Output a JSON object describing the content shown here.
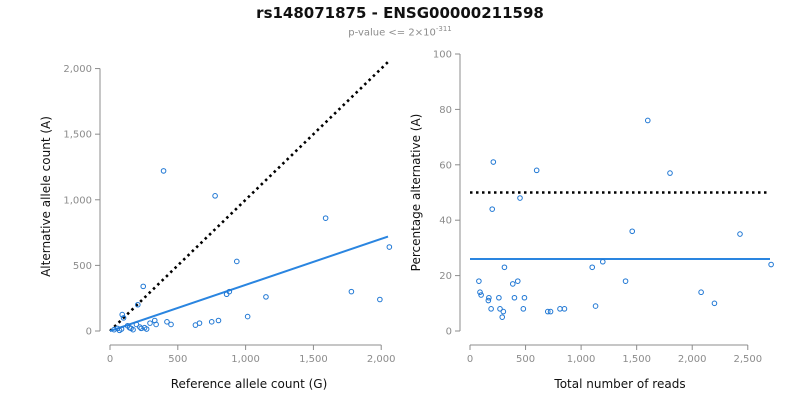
{
  "header": {
    "title": "rs148071875 - ENSG00000211598",
    "subtitle_prefix": "p-value <= 2×10",
    "subtitle_exponent": "-311"
  },
  "colors": {
    "point": "#1f77d4",
    "fit_line": "#2a85e0",
    "reference_line": "#000000",
    "axis": "#8c8c8c"
  },
  "chart_data": [
    {
      "type": "scatter",
      "xlabel": "Reference allele count (G)",
      "ylabel": "Alternative allele count (A)",
      "xlim": [
        0,
        2050
      ],
      "ylim": [
        0,
        2050
      ],
      "xticks": [
        0,
        500,
        1000,
        1500,
        2000
      ],
      "xtick_labels": [
        "0",
        "500",
        "1,000",
        "1,500",
        "2,000"
      ],
      "yticks": [
        0,
        500,
        1000,
        1500,
        2000
      ],
      "ytick_labels": [
        "0",
        "500",
        "1,000",
        "1,500",
        "2,000"
      ],
      "points": [
        [
          30,
          10
        ],
        [
          55,
          20
        ],
        [
          70,
          5
        ],
        [
          85,
          15
        ],
        [
          90,
          125
        ],
        [
          100,
          100
        ],
        [
          130,
          40
        ],
        [
          145,
          25
        ],
        [
          155,
          20
        ],
        [
          170,
          10
        ],
        [
          195,
          50
        ],
        [
          205,
          200
        ],
        [
          220,
          30
        ],
        [
          230,
          20
        ],
        [
          245,
          340
        ],
        [
          255,
          25
        ],
        [
          270,
          15
        ],
        [
          295,
          60
        ],
        [
          330,
          80
        ],
        [
          340,
          50
        ],
        [
          395,
          1220
        ],
        [
          420,
          70
        ],
        [
          450,
          50
        ],
        [
          630,
          45
        ],
        [
          660,
          60
        ],
        [
          750,
          70
        ],
        [
          775,
          1030
        ],
        [
          800,
          80
        ],
        [
          860,
          280
        ],
        [
          880,
          300
        ],
        [
          935,
          530
        ],
        [
          1015,
          110
        ],
        [
          1150,
          260
        ],
        [
          1590,
          860
        ],
        [
          1780,
          300
        ],
        [
          1990,
          240
        ],
        [
          2060,
          640
        ]
      ],
      "fit_line": [
        [
          0,
          0
        ],
        [
          2050,
          720
        ]
      ],
      "reference_line": [
        [
          0,
          0
        ],
        [
          2050,
          2050
        ]
      ]
    },
    {
      "type": "scatter",
      "xlabel": "Total number of reads",
      "ylabel": "Percentage alternative (A)",
      "xlim": [
        0,
        2700
      ],
      "ylim": [
        0,
        100
      ],
      "xticks": [
        0,
        500,
        1000,
        1500,
        2000,
        2500
      ],
      "xtick_labels": [
        "0",
        "500",
        "1,000",
        "1,500",
        "2,000",
        "2,500"
      ],
      "yticks": [
        0,
        20,
        40,
        60,
        80,
        100
      ],
      "ytick_labels": [
        "0",
        "20",
        "40",
        "60",
        "80",
        "100"
      ],
      "points": [
        [
          80,
          18
        ],
        [
          90,
          14
        ],
        [
          100,
          13
        ],
        [
          165,
          11
        ],
        [
          170,
          12
        ],
        [
          190,
          8
        ],
        [
          200,
          44
        ],
        [
          210,
          61
        ],
        [
          260,
          12
        ],
        [
          270,
          8
        ],
        [
          290,
          5
        ],
        [
          300,
          7
        ],
        [
          310,
          23
        ],
        [
          385,
          17
        ],
        [
          400,
          12
        ],
        [
          430,
          18
        ],
        [
          450,
          48
        ],
        [
          480,
          8
        ],
        [
          490,
          12
        ],
        [
          600,
          58
        ],
        [
          700,
          7
        ],
        [
          725,
          7
        ],
        [
          810,
          8
        ],
        [
          850,
          8
        ],
        [
          1100,
          23
        ],
        [
          1130,
          9
        ],
        [
          1195,
          25
        ],
        [
          1400,
          18
        ],
        [
          1460,
          36
        ],
        [
          1600,
          76
        ],
        [
          1800,
          57
        ],
        [
          2080,
          14
        ],
        [
          2200,
          10
        ],
        [
          2430,
          35
        ],
        [
          2710,
          24
        ]
      ],
      "fit_line": [
        [
          0,
          26
        ],
        [
          2700,
          26
        ]
      ],
      "reference_line": [
        [
          0,
          50
        ],
        [
          2700,
          50
        ]
      ]
    }
  ]
}
